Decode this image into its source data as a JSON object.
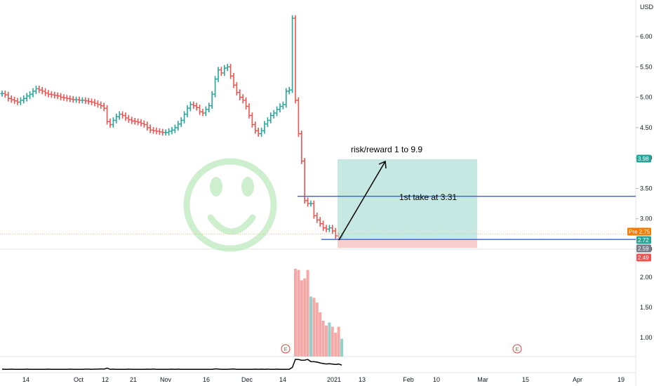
{
  "chart_data": {
    "type": "bar",
    "currency": "USD",
    "y_ticks": [
      "6.00",
      "5.50",
      "5.00",
      "4.50",
      "4.00",
      "3.50",
      "3.00",
      "2.50"
    ],
    "volume_ticks": [
      "2.00",
      "1.50",
      "1.00"
    ],
    "x_ticks": [
      "14",
      "Oct",
      "12",
      "21",
      "Nov",
      "16",
      "Dec",
      "14",
      "2021",
      "13",
      "Feb",
      "10",
      "Mar",
      "15",
      "Apr",
      "19"
    ],
    "price_range": [
      2.2,
      6.4
    ],
    "prices": [
      5.06,
      5.04,
      4.98,
      4.96,
      4.94,
      4.92,
      4.95,
      4.98,
      5.02,
      5.05,
      5.1,
      5.14,
      5.12,
      5.1,
      5.07,
      5.05,
      5.04,
      5.03,
      5.02,
      5.0,
      4.99,
      4.98,
      4.97,
      4.96,
      4.96,
      4.95,
      4.95,
      4.94,
      4.93,
      4.92,
      4.9,
      4.88,
      4.86,
      4.82,
      4.6,
      4.55,
      4.62,
      4.68,
      4.72,
      4.7,
      4.66,
      4.63,
      4.61,
      4.6,
      4.59,
      4.57,
      4.55,
      4.5,
      4.46,
      4.45,
      4.44,
      4.43,
      4.42,
      4.42,
      4.44,
      4.46,
      4.5,
      4.56,
      4.62,
      4.72,
      4.82,
      4.88,
      4.86,
      4.83,
      4.76,
      4.74,
      4.8,
      4.86,
      5.05,
      5.3,
      5.45,
      5.4,
      5.48,
      5.5,
      5.35,
      5.2,
      5.08,
      5.0,
      4.95,
      4.85,
      4.7,
      4.55,
      4.45,
      4.4,
      4.45,
      4.56,
      4.62,
      4.7,
      4.74,
      4.8,
      4.85,
      4.88,
      5.1,
      5.12,
      6.3,
      4.95,
      4.4,
      3.95,
      3.3,
      3.25,
      3.25,
      3.05,
      2.98,
      2.92,
      2.85,
      2.83,
      2.85,
      2.8,
      2.72,
      2.7,
      2.72
    ],
    "volumes": [
      0.14,
      0.12,
      0.12,
      0.14,
      0.12,
      0.1,
      0.12,
      0.12,
      0.14,
      0.12,
      0.1,
      0.1,
      0.12,
      0.12,
      0.1,
      0.14,
      0.12,
      0.1,
      0.1,
      0.1,
      0.12,
      0.1,
      0.14,
      0.12,
      0.12,
      0.1,
      0.1,
      0.14,
      0.14,
      0.1,
      0.14,
      0.14,
      0.2,
      0.14,
      0.36,
      0.12,
      0.14,
      0.1,
      0.1,
      0.1,
      0.1,
      0.14,
      0.12,
      0.1,
      0.1,
      0.12,
      0.12,
      0.14,
      0.1,
      0.16,
      0.12,
      0.1,
      0.12,
      0.12,
      0.1,
      0.14,
      0.12,
      0.14,
      0.1,
      0.1,
      0.1,
      0.1,
      0.1,
      0.1,
      0.1,
      0.1,
      0.1,
      0.1,
      0.12,
      0.2,
      0.16,
      0.12,
      0.12,
      0.1,
      0.14,
      0.18,
      0.12,
      0.12,
      0.1,
      0.1,
      0.12,
      0.12,
      0.14,
      0.12,
      0.14,
      0.12,
      0.14,
      0.12,
      0.12,
      0.14,
      0.12,
      0.12,
      0.12,
      0.12,
      0.5,
      2.14,
      2.12,
      1.95,
      1.98,
      2.12,
      1.68,
      1.66,
      1.58,
      1.42,
      1.28,
      1.2,
      1.25,
      1.18,
      1.08,
      1.18,
      0.98
    ],
    "risk_reward_box": {
      "entry": 2.65,
      "target": 3.98,
      "stop": 2.52
    },
    "horizontal_lines": [
      3.37,
      2.66
    ],
    "price_labels": [
      {
        "text": "3.98",
        "value": 3.98,
        "color": "#26a69a"
      },
      {
        "text": "Pre  2.75",
        "value": 2.75,
        "color": "#f57c00"
      },
      {
        "text": "2.72",
        "value": 2.72,
        "color": "#26a69a"
      },
      {
        "text": "2.59",
        "value": 2.59,
        "color": "#787b86"
      },
      {
        "text": "2.49",
        "value": 2.49,
        "color": "#ef5350"
      }
    ],
    "annotations": {
      "risk_reward": "risk/reward 1 to 9.9",
      "first_take": "1st take at 3.31"
    },
    "earnings_markers": [
      "E",
      "E"
    ],
    "up_color": "#26a69a",
    "down_color": "#ef5350",
    "line_color": "#2962ff"
  }
}
